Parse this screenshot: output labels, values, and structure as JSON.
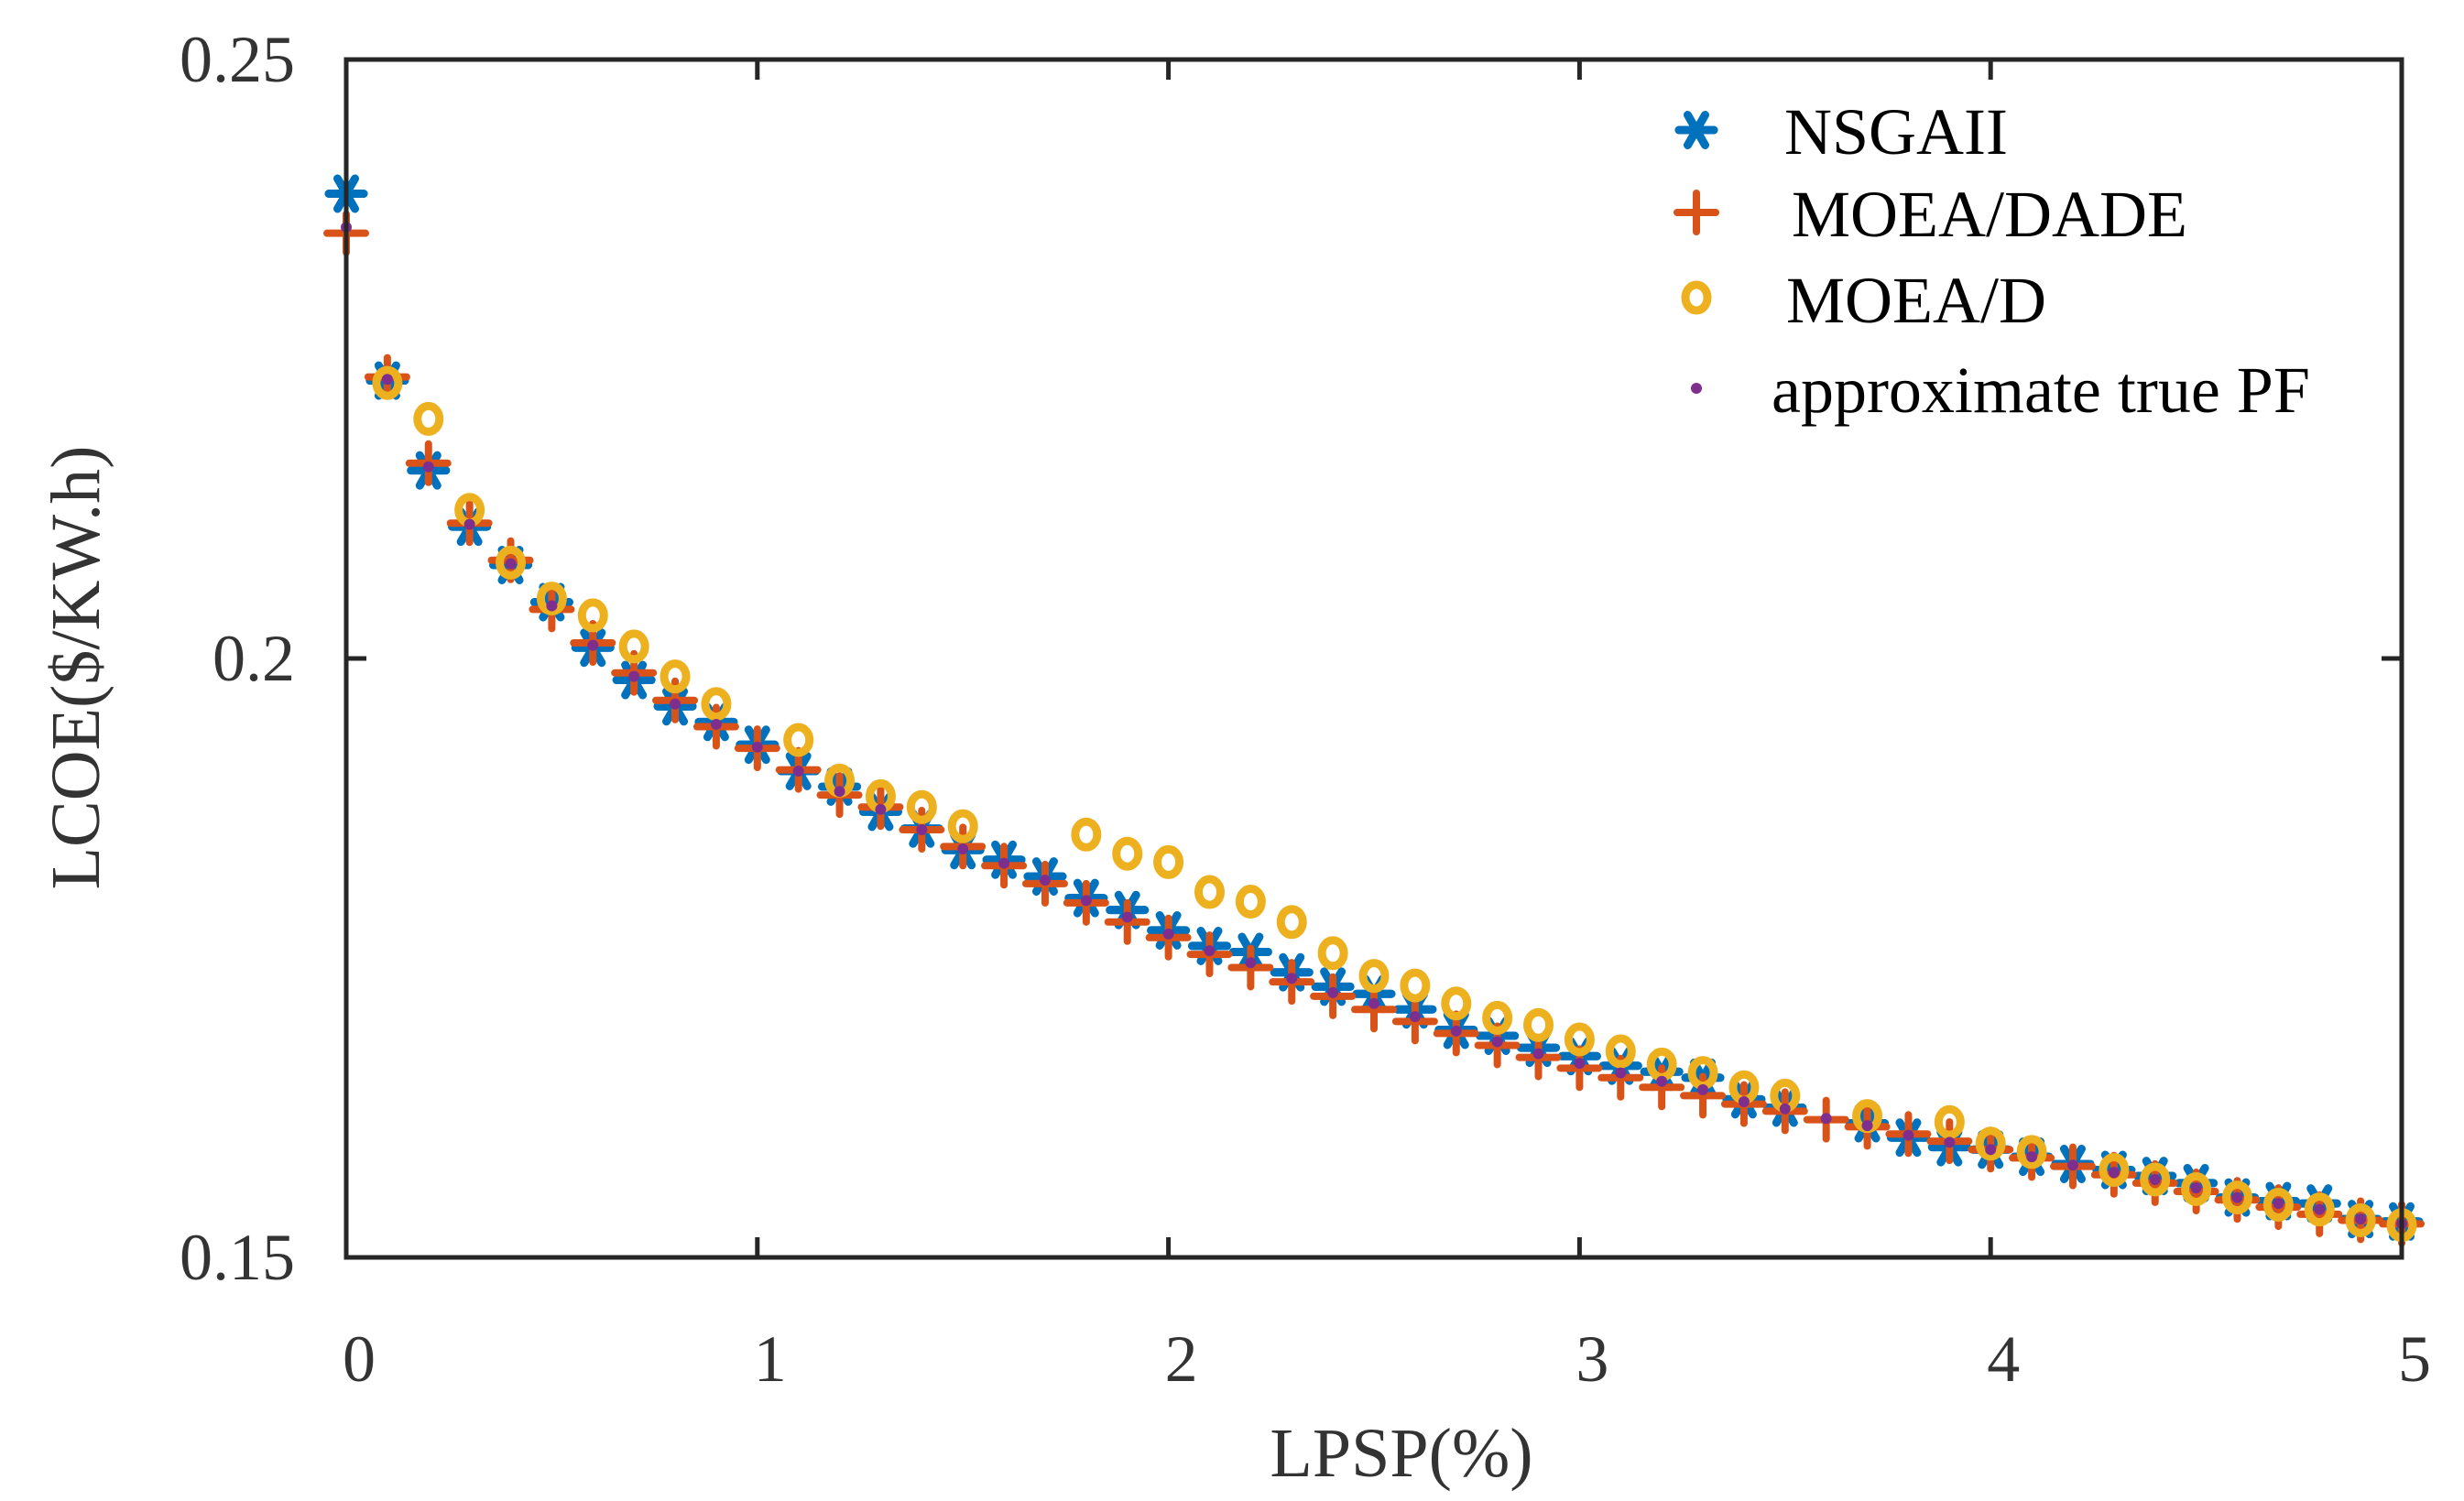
{
  "chart_data": {
    "type": "scatter",
    "title": "",
    "xlabel": "LPSP(%)",
    "ylabel": "LCOE($/KW.h)",
    "xlim": [
      0,
      5
    ],
    "ylim": [
      0.15,
      0.25
    ],
    "xticks": [
      0,
      1,
      2,
      3,
      4,
      5
    ],
    "xtick_labels": [
      "0",
      "1",
      "2",
      "3",
      "4",
      "5"
    ],
    "yticks": [
      0.15,
      0.2,
      0.25
    ],
    "ytick_labels": [
      "0.15",
      "0.2",
      "0.25"
    ],
    "grid": false,
    "legend_position": "top-right",
    "series": [
      {
        "name": "NSGAII",
        "marker": "asterisk",
        "color": "#0072BD",
        "points": [
          [
            0.0,
            0.2388
          ],
          [
            0.1,
            0.2232
          ],
          [
            0.2,
            0.2157
          ],
          [
            0.3,
            0.211
          ],
          [
            0.4,
            0.2078
          ],
          [
            0.5,
            0.2047
          ],
          [
            0.6,
            0.2009
          ],
          [
            0.7,
            0.1982
          ],
          [
            0.8,
            0.196
          ],
          [
            0.9,
            0.1947
          ],
          [
            1.0,
            0.1928
          ],
          [
            1.1,
            0.1906
          ],
          [
            1.2,
            0.1893
          ],
          [
            1.3,
            0.1872
          ],
          [
            1.4,
            0.1858
          ],
          [
            1.5,
            0.184
          ],
          [
            1.6,
            0.1832
          ],
          [
            1.7,
            0.1818
          ],
          [
            1.8,
            0.18
          ],
          [
            1.9,
            0.179
          ],
          [
            2.0,
            0.1773
          ],
          [
            2.1,
            0.176
          ],
          [
            2.2,
            0.1755
          ],
          [
            2.3,
            0.1738
          ],
          [
            2.4,
            0.1726
          ],
          [
            2.5,
            0.172
          ],
          [
            2.6,
            0.1707
          ],
          [
            2.7,
            0.169
          ],
          [
            2.8,
            0.1685
          ],
          [
            2.9,
            0.1675
          ],
          [
            3.0,
            0.1668
          ],
          [
            3.1,
            0.166
          ],
          [
            3.2,
            0.1655
          ],
          [
            3.3,
            0.165
          ],
          [
            3.4,
            0.1632
          ],
          [
            3.5,
            0.1625
          ],
          [
            3.7,
            0.1612
          ],
          [
            3.8,
            0.16
          ],
          [
            3.9,
            0.1592
          ],
          [
            4.0,
            0.159
          ],
          [
            4.1,
            0.1584
          ],
          [
            4.2,
            0.1578
          ],
          [
            4.3,
            0.1573
          ],
          [
            4.4,
            0.1568
          ],
          [
            4.5,
            0.1562
          ],
          [
            4.6,
            0.155
          ],
          [
            4.7,
            0.1547
          ],
          [
            4.8,
            0.1545
          ],
          [
            4.9,
            0.1532
          ],
          [
            5.0,
            0.153
          ]
        ]
      },
      {
        "name": "MOEA/DADE",
        "marker": "plus",
        "color": "#D95319",
        "points": [
          [
            0.0,
            0.2355
          ],
          [
            0.1,
            0.2235
          ],
          [
            0.2,
            0.2163
          ],
          [
            0.3,
            0.2113
          ],
          [
            0.4,
            0.2082
          ],
          [
            0.5,
            0.2041
          ],
          [
            0.6,
            0.2013
          ],
          [
            0.7,
            0.1988
          ],
          [
            0.8,
            0.1965
          ],
          [
            0.9,
            0.1943
          ],
          [
            1.0,
            0.1925
          ],
          [
            1.1,
            0.1907
          ],
          [
            1.2,
            0.1886
          ],
          [
            1.3,
            0.1876
          ],
          [
            1.4,
            0.1857
          ],
          [
            1.5,
            0.1843
          ],
          [
            1.6,
            0.1827
          ],
          [
            1.7,
            0.1812
          ],
          [
            1.8,
            0.1796
          ],
          [
            1.9,
            0.178
          ],
          [
            2.0,
            0.1767
          ],
          [
            2.1,
            0.1753
          ],
          [
            2.2,
            0.1742
          ],
          [
            2.3,
            0.173
          ],
          [
            2.4,
            0.1718
          ],
          [
            2.5,
            0.1707
          ],
          [
            2.6,
            0.1697
          ],
          [
            2.7,
            0.1687
          ],
          [
            2.8,
            0.1677
          ],
          [
            2.9,
            0.1667
          ],
          [
            3.0,
            0.1658
          ],
          [
            3.1,
            0.165
          ],
          [
            3.2,
            0.1642
          ],
          [
            3.3,
            0.1635
          ],
          [
            3.4,
            0.1628
          ],
          [
            3.5,
            0.1622
          ],
          [
            3.6,
            0.1615
          ],
          [
            3.7,
            0.1609
          ],
          [
            3.8,
            0.1603
          ],
          [
            3.9,
            0.1597
          ],
          [
            4.0,
            0.159
          ],
          [
            4.1,
            0.1583
          ],
          [
            4.2,
            0.1576
          ],
          [
            4.3,
            0.1569
          ],
          [
            4.4,
            0.1562
          ],
          [
            4.5,
            0.1555
          ],
          [
            4.6,
            0.1548
          ],
          [
            4.7,
            0.1542
          ],
          [
            4.8,
            0.1536
          ],
          [
            4.9,
            0.1531
          ],
          [
            5.0,
            0.1528
          ]
        ]
      },
      {
        "name": "MOEA/D",
        "marker": "circle",
        "color": "#EDB120",
        "points": [
          [
            0.1,
            0.223
          ],
          [
            0.2,
            0.22
          ],
          [
            0.3,
            0.2124
          ],
          [
            0.4,
            0.208
          ],
          [
            0.5,
            0.205
          ],
          [
            0.6,
            0.2036
          ],
          [
            0.7,
            0.201
          ],
          [
            0.8,
            0.1985
          ],
          [
            0.9,
            0.1962
          ],
          [
            1.1,
            0.1932
          ],
          [
            1.2,
            0.1898
          ],
          [
            1.3,
            0.1885
          ],
          [
            1.4,
            0.1876
          ],
          [
            1.5,
            0.186
          ],
          [
            1.8,
            0.1853
          ],
          [
            1.9,
            0.1837
          ],
          [
            2.0,
            0.183
          ],
          [
            2.1,
            0.1805
          ],
          [
            2.2,
            0.1797
          ],
          [
            2.3,
            0.178
          ],
          [
            2.4,
            0.1754
          ],
          [
            2.5,
            0.1735
          ],
          [
            2.6,
            0.1727
          ],
          [
            2.7,
            0.1712
          ],
          [
            2.8,
            0.17
          ],
          [
            2.9,
            0.1694
          ],
          [
            3.0,
            0.1682
          ],
          [
            3.1,
            0.1672
          ],
          [
            3.2,
            0.1661
          ],
          [
            3.3,
            0.1654
          ],
          [
            3.4,
            0.1642
          ],
          [
            3.5,
            0.1635
          ],
          [
            3.7,
            0.1618
          ],
          [
            3.9,
            0.1613
          ],
          [
            4.0,
            0.1595
          ],
          [
            4.1,
            0.1588
          ],
          [
            4.3,
            0.1573
          ],
          [
            4.4,
            0.1565
          ],
          [
            4.5,
            0.1557
          ],
          [
            4.6,
            0.155
          ],
          [
            4.7,
            0.1544
          ],
          [
            4.8,
            0.154
          ],
          [
            4.9,
            0.1531
          ],
          [
            5.0,
            0.1527
          ]
        ]
      },
      {
        "name": "approximate true PF",
        "marker": "dot",
        "color": "#7E2F8E",
        "points": [
          [
            0.0,
            0.236
          ],
          [
            0.1,
            0.2233
          ],
          [
            0.2,
            0.216
          ],
          [
            0.3,
            0.2112
          ],
          [
            0.4,
            0.2079
          ],
          [
            0.5,
            0.2044
          ],
          [
            0.6,
            0.2011
          ],
          [
            0.7,
            0.1985
          ],
          [
            0.8,
            0.1962
          ],
          [
            0.9,
            0.1945
          ],
          [
            1.0,
            0.1926
          ],
          [
            1.1,
            0.1906
          ],
          [
            1.2,
            0.1889
          ],
          [
            1.3,
            0.1874
          ],
          [
            1.4,
            0.1857
          ],
          [
            1.5,
            0.1841
          ],
          [
            1.6,
            0.1829
          ],
          [
            1.7,
            0.1815
          ],
          [
            1.8,
            0.1798
          ],
          [
            1.9,
            0.1784
          ],
          [
            2.0,
            0.177
          ],
          [
            2.1,
            0.1756
          ],
          [
            2.2,
            0.1746
          ],
          [
            2.3,
            0.1733
          ],
          [
            2.4,
            0.1721
          ],
          [
            2.5,
            0.1712
          ],
          [
            2.6,
            0.1701
          ],
          [
            2.7,
            0.1689
          ],
          [
            2.8,
            0.168
          ],
          [
            2.9,
            0.167
          ],
          [
            3.0,
            0.1662
          ],
          [
            3.1,
            0.1654
          ],
          [
            3.2,
            0.1647
          ],
          [
            3.3,
            0.164
          ],
          [
            3.4,
            0.163
          ],
          [
            3.5,
            0.1624
          ],
          [
            3.6,
            0.1616
          ],
          [
            3.7,
            0.161
          ],
          [
            3.8,
            0.1602
          ],
          [
            3.9,
            0.1596
          ],
          [
            4.0,
            0.159
          ],
          [
            4.1,
            0.1584
          ],
          [
            4.2,
            0.1577
          ],
          [
            4.3,
            0.1571
          ],
          [
            4.4,
            0.1565
          ],
          [
            4.5,
            0.1558
          ],
          [
            4.6,
            0.155
          ],
          [
            4.7,
            0.1545
          ],
          [
            4.8,
            0.154
          ],
          [
            4.9,
            0.1532
          ],
          [
            5.0,
            0.1528
          ]
        ]
      }
    ]
  }
}
